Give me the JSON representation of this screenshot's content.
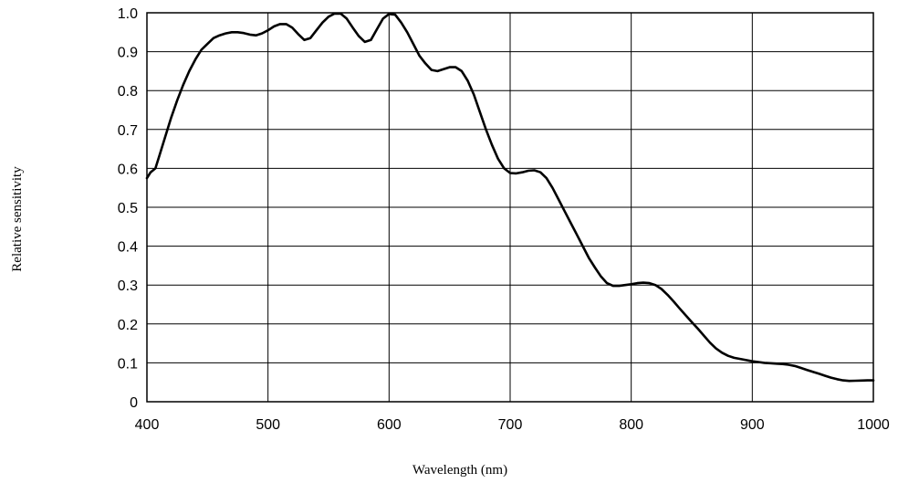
{
  "chart_data": {
    "type": "line",
    "title": "",
    "xlabel": "Wavelength (nm)",
    "ylabel": "Relative sensitivity",
    "xlim": [
      400,
      1000
    ],
    "ylim": [
      0,
      1.0
    ],
    "grid": true,
    "x_ticks": [
      400,
      500,
      600,
      700,
      800,
      900,
      1000
    ],
    "y_ticks": [
      0,
      0.1,
      0.2,
      0.3,
      0.4,
      0.5,
      0.6,
      0.7,
      0.8,
      0.9,
      1.0
    ],
    "x_tick_labels": [
      "400",
      "500",
      "600",
      "700",
      "800",
      "900",
      "1000"
    ],
    "y_tick_labels": [
      "0",
      "0.1",
      "0.2",
      "0.3",
      "0.4",
      "0.5",
      "0.6",
      "0.7",
      "0.8",
      "0.9",
      "1.0"
    ],
    "colors": {
      "line": "#000000",
      "grid": "#000000",
      "background": "#ffffff"
    },
    "series": [
      {
        "x": [
          400,
          403,
          407,
          410,
          415,
          420,
          425,
          430,
          435,
          440,
          445,
          450,
          455,
          460,
          465,
          470,
          475,
          480,
          485,
          490,
          495,
          500,
          505,
          510,
          515,
          520,
          525,
          530,
          535,
          540,
          545,
          550,
          555,
          560,
          565,
          570,
          575,
          580,
          585,
          590,
          595,
          600,
          605,
          610,
          615,
          620,
          625,
          630,
          635,
          640,
          645,
          650,
          655,
          660,
          665,
          670,
          675,
          680,
          685,
          690,
          695,
          700,
          705,
          710,
          715,
          720,
          725,
          730,
          735,
          740,
          745,
          750,
          755,
          760,
          765,
          770,
          775,
          780,
          785,
          790,
          795,
          800,
          805,
          810,
          815,
          820,
          825,
          830,
          835,
          840,
          845,
          850,
          855,
          860,
          865,
          870,
          875,
          880,
          885,
          890,
          895,
          900,
          905,
          910,
          915,
          920,
          925,
          930,
          935,
          940,
          945,
          950,
          955,
          960,
          965,
          970,
          975,
          980,
          985,
          990,
          995,
          1000
        ],
        "y": [
          0.575,
          0.59,
          0.6,
          0.63,
          0.68,
          0.73,
          0.775,
          0.815,
          0.85,
          0.88,
          0.905,
          0.92,
          0.935,
          0.942,
          0.947,
          0.95,
          0.95,
          0.948,
          0.944,
          0.942,
          0.947,
          0.955,
          0.965,
          0.971,
          0.971,
          0.962,
          0.945,
          0.93,
          0.935,
          0.955,
          0.975,
          0.99,
          0.998,
          0.998,
          0.985,
          0.962,
          0.94,
          0.925,
          0.93,
          0.958,
          0.985,
          0.997,
          0.995,
          0.975,
          0.95,
          0.92,
          0.89,
          0.87,
          0.853,
          0.85,
          0.855,
          0.86,
          0.86,
          0.85,
          0.825,
          0.79,
          0.745,
          0.7,
          0.66,
          0.625,
          0.6,
          0.588,
          0.587,
          0.59,
          0.594,
          0.595,
          0.59,
          0.575,
          0.55,
          0.52,
          0.49,
          0.46,
          0.43,
          0.4,
          0.37,
          0.345,
          0.322,
          0.305,
          0.298,
          0.298,
          0.3,
          0.302,
          0.305,
          0.306,
          0.305,
          0.3,
          0.29,
          0.275,
          0.258,
          0.24,
          0.222,
          0.205,
          0.188,
          0.17,
          0.152,
          0.137,
          0.126,
          0.118,
          0.113,
          0.11,
          0.107,
          0.104,
          0.102,
          0.1,
          0.099,
          0.098,
          0.097,
          0.095,
          0.092,
          0.087,
          0.082,
          0.077,
          0.072,
          0.067,
          0.062,
          0.058,
          0.055,
          0.0535,
          0.054,
          0.0545,
          0.055,
          0.055
        ]
      }
    ]
  }
}
